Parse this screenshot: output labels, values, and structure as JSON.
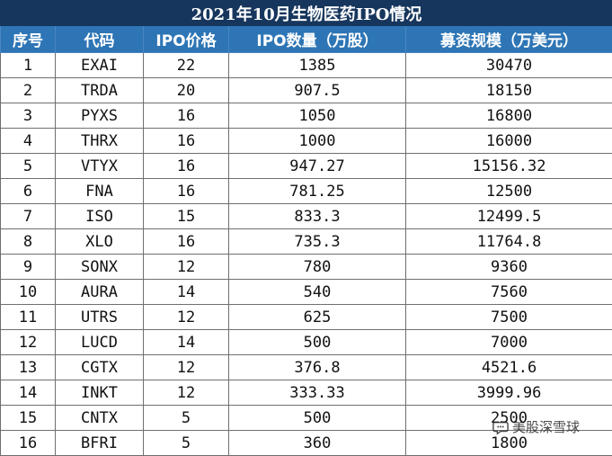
{
  "title": "2021年10月生物医药IPO情况",
  "columns": [
    "序号",
    "代码",
    "IPO价格",
    "IPO数量（万股）",
    "募资规模（万美元）"
  ],
  "rows": [
    [
      "1",
      "EXAI",
      "22",
      "1385",
      "30470"
    ],
    [
      "2",
      "TRDA",
      "20",
      "907.5",
      "18150"
    ],
    [
      "3",
      "PYXS",
      "16",
      "1050",
      "16800"
    ],
    [
      "4",
      "THRX",
      "16",
      "1000",
      "16000"
    ],
    [
      "5",
      "VTYX",
      "16",
      "947.27",
      "15156.32"
    ],
    [
      "6",
      "FNA",
      "16",
      "781.25",
      "12500"
    ],
    [
      "7",
      "ISO",
      "15",
      "833.3",
      "12499.5"
    ],
    [
      "8",
      "XLO",
      "16",
      "735.3",
      "11764.8"
    ],
    [
      "9",
      "SONX",
      "12",
      "780",
      "9360"
    ],
    [
      "10",
      "AURA",
      "14",
      "540",
      "7560"
    ],
    [
      "11",
      "UTRS",
      "12",
      "625",
      "7500"
    ],
    [
      "12",
      "LUCD",
      "14",
      "500",
      "7000"
    ],
    [
      "13",
      "CGTX",
      "12",
      "376.8",
      "4521.6"
    ],
    [
      "14",
      "INKT",
      "12",
      "333.33",
      "3999.96"
    ],
    [
      "15",
      "CNTX",
      "5",
      "500",
      "2500"
    ],
    [
      "16",
      "BFRI",
      "5",
      "360",
      "1800"
    ]
  ],
  "watermark": {
    "text": "美股深雪球",
    "icon": "chat-bubble-icon"
  },
  "colors": {
    "title_bg": "#17365d",
    "header_bg": "#2e75b5",
    "header_text": "#ffffff",
    "border": "#6f6f6f"
  }
}
